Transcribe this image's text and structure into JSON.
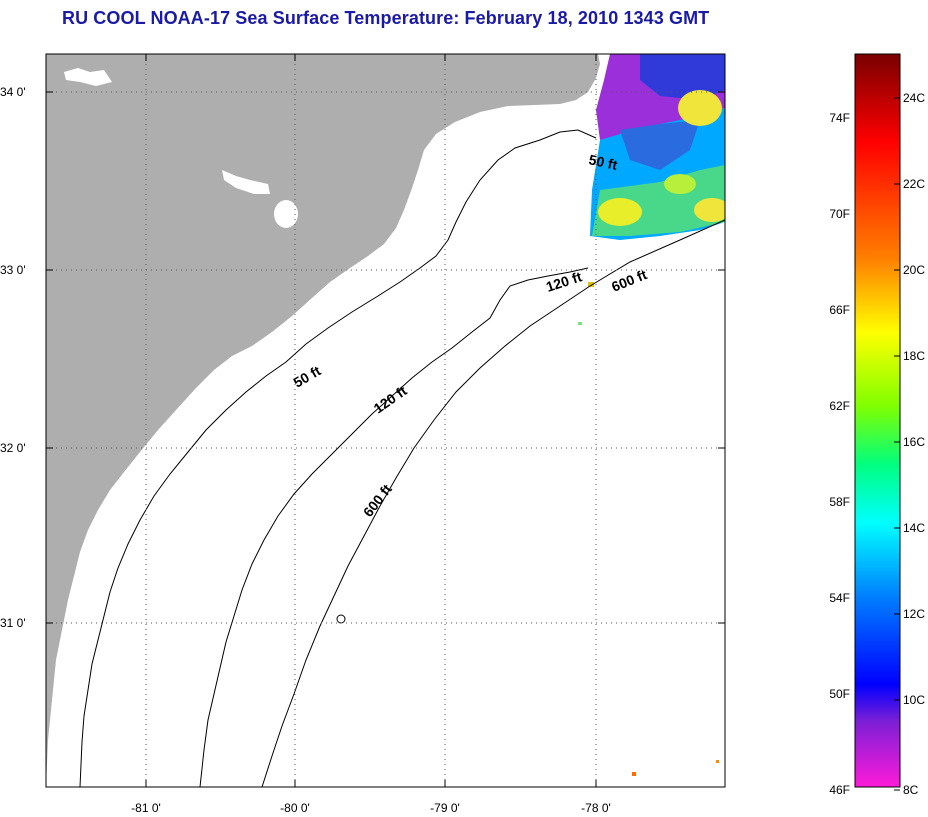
{
  "title": "RU COOL  NOAA-17  Sea Surface Temperature:  February 18, 2010 1343 GMT",
  "map": {
    "lon_labels": [
      "-81 0'",
      "-80 0'",
      "-79 0'",
      "-78 0'"
    ],
    "lat_labels": [
      "34 0'",
      "33 0'",
      "32 0'",
      "31 0'"
    ],
    "contours": [
      {
        "label": "50 ft"
      },
      {
        "label": "120 ft"
      },
      {
        "label": "600 ft"
      },
      {
        "label": "50 ft"
      },
      {
        "label": "120 ft"
      },
      {
        "label": "600 ft"
      }
    ]
  },
  "colorbar": {
    "fahrenheit_ticks": [
      "74F",
      "70F",
      "66F",
      "62F",
      "58F",
      "54F",
      "50F",
      "46F"
    ],
    "celsius_ticks": [
      "24C",
      "22C",
      "20C",
      "18C",
      "16C",
      "14C",
      "12C",
      "10C",
      "8C"
    ],
    "colors": [
      "#8b0000",
      "#ff0000",
      "#ff7f00",
      "#ffff00",
      "#7fff00",
      "#00ff7f",
      "#00ffff",
      "#007fff",
      "#0000ff",
      "#6a0dad",
      "#ff1493"
    ]
  }
}
